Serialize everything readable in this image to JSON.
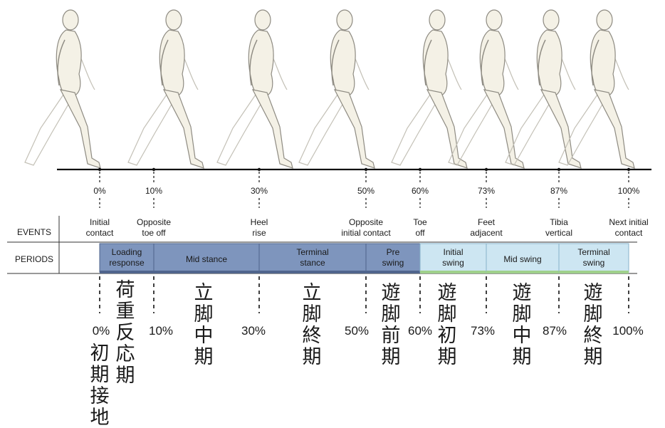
{
  "row_labels": {
    "events": "EVENTS",
    "periods": "PERIODS"
  },
  "ticks": [
    {
      "pct": "0%",
      "event": [
        "Initial",
        "contact"
      ]
    },
    {
      "pct": "10%",
      "event": [
        "Opposite",
        "toe off"
      ]
    },
    {
      "pct": "30%",
      "event": [
        "Heel",
        "rise"
      ]
    },
    {
      "pct": "50%",
      "event": [
        "Opposite",
        "initial contact"
      ]
    },
    {
      "pct": "60%",
      "event": [
        "Toe",
        "off"
      ]
    },
    {
      "pct": "73%",
      "event": [
        "Feet",
        "adjacent"
      ]
    },
    {
      "pct": "87%",
      "event": [
        "Tibia",
        "vertical"
      ]
    },
    {
      "pct": "100%",
      "event": [
        "Next initial",
        "contact"
      ]
    }
  ],
  "periods": [
    {
      "label": [
        "Loading",
        "response"
      ],
      "phase": "stance",
      "jp": [
        "荷",
        "重",
        "反",
        "応",
        "期"
      ]
    },
    {
      "label": [
        "Mid stance"
      ],
      "phase": "stance",
      "jp": [
        "立",
        "脚",
        "中",
        "期"
      ]
    },
    {
      "label": [
        "Terminal",
        "stance"
      ],
      "phase": "stance",
      "jp": [
        "立",
        "脚",
        "終",
        "期"
      ]
    },
    {
      "label": [
        "Pre",
        "swing"
      ],
      "phase": "stance",
      "jp": [
        "遊",
        "脚",
        "前",
        "期"
      ]
    },
    {
      "label": [
        "Initial",
        "swing"
      ],
      "phase": "swing",
      "jp": [
        "遊",
        "脚",
        "初",
        "期"
      ]
    },
    {
      "label": [
        "Mid swing"
      ],
      "phase": "swing",
      "jp": [
        "遊",
        "脚",
        "中",
        "期"
      ]
    },
    {
      "label": [
        "Terminal",
        "swing"
      ],
      "phase": "swing",
      "jp": [
        "遊",
        "脚",
        "終",
        "期"
      ]
    }
  ],
  "bottom_pct_labels": [
    "0%",
    "10%",
    "30%",
    "50%",
    "60%",
    "73%",
    "87%",
    "100%"
  ],
  "initial_contact_jp": [
    "初",
    "期",
    "接",
    "地"
  ],
  "colors": {
    "stance_fill": "#7e95bd",
    "swing_fill": "#cde6f2",
    "swing_edge": "#9fd08b",
    "figure_fill": "#f4f1e6",
    "figure_stroke": "#8e8b82",
    "text": "#1a1a1a"
  }
}
